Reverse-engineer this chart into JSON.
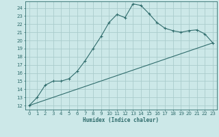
{
  "xlabel": "Humidex (Indice chaleur)",
  "bg_color": "#cce8e8",
  "grid_color": "#aacccc",
  "line_color": "#2e6b6b",
  "xlim": [
    -0.5,
    23.5
  ],
  "ylim": [
    11.5,
    24.8
  ],
  "x_ticks": [
    0,
    1,
    2,
    3,
    4,
    5,
    6,
    7,
    8,
    9,
    10,
    11,
    12,
    13,
    14,
    15,
    16,
    17,
    18,
    19,
    20,
    21,
    22,
    23
  ],
  "y_ticks": [
    12,
    13,
    14,
    15,
    16,
    17,
    18,
    19,
    20,
    21,
    22,
    23,
    24
  ],
  "curve_x": [
    0,
    1,
    2,
    3,
    4,
    5,
    6,
    7,
    8,
    9,
    10,
    11,
    12,
    13,
    14,
    15,
    16,
    17,
    18,
    19,
    20,
    21,
    22,
    23
  ],
  "curve_y": [
    12,
    13,
    14.5,
    15,
    15,
    15.3,
    16.2,
    17.5,
    19.0,
    20.5,
    22.2,
    23.2,
    22.8,
    24.5,
    24.3,
    23.3,
    22.2,
    21.5,
    21.2,
    21.0,
    21.2,
    21.3,
    20.8,
    19.7
  ],
  "line_x": [
    0,
    23
  ],
  "line_y": [
    12,
    19.7
  ]
}
